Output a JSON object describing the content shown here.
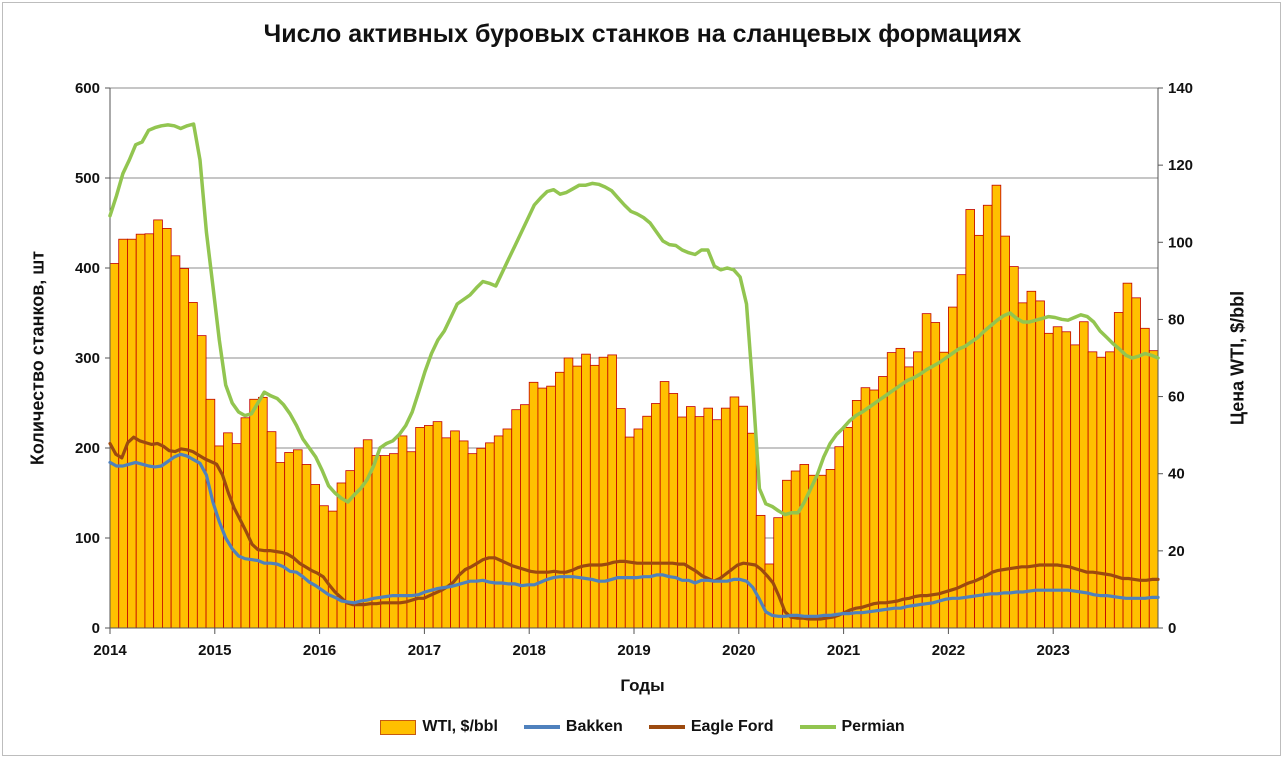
{
  "chart_data": {
    "type": "bar+line",
    "title": "Число активных буровых станков на сланцевых формациях",
    "xlabel": "Годы",
    "ylabel_left": "Количество станков, шт",
    "ylabel_right": "Цена WTI, $/bbl",
    "ylim_left": [
      0,
      600
    ],
    "ylim_right": [
      0,
      140
    ],
    "yticks_left": [
      "0",
      "100",
      "200",
      "300",
      "400",
      "500",
      "600"
    ],
    "yticks_right": [
      "0",
      "20",
      "40",
      "60",
      "80",
      "100",
      "120",
      "140"
    ],
    "xticks": [
      "2014",
      "2015",
      "2016",
      "2017",
      "2018",
      "2019",
      "2020",
      "2021",
      "2022",
      "2023"
    ],
    "x_start": "2014-01",
    "gridlines": "horizontal, left axis, every 100",
    "legend_position": "bottom",
    "series": [
      {
        "name": "WTI, $/bbl",
        "kind": "bar",
        "axis": "right",
        "color": "#ffc000",
        "edge_color": "#c00000",
        "values": [
          94.5,
          100.8,
          100.8,
          102.1,
          102.2,
          105.8,
          103.6,
          96.5,
          93.2,
          84.4,
          75.8,
          59.3,
          47.2,
          50.6,
          47.8,
          54.5,
          59.3,
          59.8,
          50.9,
          42.9,
          45.5,
          46.2,
          42.4,
          37.2,
          31.7,
          30.3,
          37.6,
          40.8,
          46.7,
          48.8,
          44.7,
          44.7,
          45.2,
          49.8,
          45.7,
          52.0,
          52.5,
          53.5,
          49.3,
          51.1,
          48.5,
          45.2,
          46.6,
          48.0,
          49.8,
          51.6,
          56.6,
          57.9,
          63.7,
          62.2,
          62.7,
          66.3,
          70.0,
          67.9,
          71.0,
          68.1,
          70.2,
          70.8,
          56.9,
          49.5,
          51.6,
          54.9,
          58.2,
          63.9,
          60.8,
          54.7,
          57.4,
          54.8,
          57.0,
          54.0,
          57.0,
          59.9,
          57.5,
          50.5,
          29.2,
          16.6,
          28.6,
          38.3,
          40.7,
          42.4,
          39.6,
          39.6,
          41.1,
          47.0,
          52.0,
          59.0,
          62.3,
          61.7,
          65.2,
          71.4,
          72.5,
          67.7,
          71.6,
          81.5,
          79.2,
          71.5,
          83.2,
          91.6,
          108.5,
          101.8,
          109.6,
          114.8,
          101.6,
          93.7,
          84.3,
          87.3,
          84.8,
          76.4,
          78.1,
          76.8,
          73.4,
          79.4,
          71.6,
          70.2,
          71.6,
          81.8,
          89.4,
          85.6,
          77.7,
          71.9
        ]
      },
      {
        "name": "Bakken",
        "kind": "line",
        "axis": "left",
        "color": "#4f81bd",
        "values": [
          184,
          180,
          180,
          182,
          184,
          182,
          180,
          179,
          180,
          185,
          190,
          193,
          191,
          187,
          183,
          170,
          140,
          118,
          100,
          88,
          80,
          77,
          76,
          75,
          72,
          72,
          71,
          68,
          63,
          62,
          57,
          51,
          47,
          42,
          37,
          34,
          30,
          29,
          28,
          30,
          31,
          33,
          34,
          35,
          36,
          36,
          36,
          36,
          37,
          40,
          42,
          44,
          45,
          46,
          48,
          50,
          52,
          52,
          53,
          51,
          50,
          50,
          49,
          49,
          47,
          48,
          48,
          51,
          54,
          56,
          57,
          57,
          57,
          56,
          55,
          54,
          52,
          52,
          54,
          56,
          56,
          56,
          56,
          57,
          57,
          59,
          59,
          57,
          56,
          53,
          53,
          50,
          53,
          53,
          52,
          52,
          52,
          54,
          54,
          52,
          45,
          32,
          18,
          14,
          13,
          13,
          14,
          14,
          13,
          13,
          13,
          14,
          14,
          15,
          16,
          16,
          17,
          17,
          18,
          19,
          20,
          21,
          22,
          22,
          24,
          25,
          26,
          27,
          28,
          30,
          32,
          33,
          33,
          34,
          35,
          36,
          37,
          38,
          38,
          39,
          39,
          40,
          40,
          41,
          42,
          42,
          42,
          42,
          42,
          42,
          41,
          40,
          39,
          37,
          36,
          36,
          35,
          34,
          33,
          33,
          33,
          33,
          34,
          34
        ]
      },
      {
        "name": "Eagle Ford",
        "kind": "line",
        "axis": "left",
        "color": "#9c4a0f",
        "values": [
          205,
          193,
          189,
          206,
          212,
          208,
          206,
          204,
          205,
          202,
          197,
          196,
          199,
          198,
          196,
          192,
          188,
          185,
          182,
          170,
          150,
          133,
          120,
          107,
          93,
          87,
          86,
          86,
          85,
          84,
          82,
          78,
          72,
          68,
          64,
          61,
          57,
          48,
          40,
          34,
          28,
          26,
          26,
          26,
          27,
          27,
          28,
          28,
          28,
          28,
          29,
          31,
          33,
          33,
          36,
          39,
          42,
          46,
          51,
          59,
          65,
          68,
          72,
          76,
          78,
          78,
          75,
          72,
          69,
          67,
          65,
          63,
          62,
          62,
          62,
          63,
          62,
          62,
          64,
          67,
          69,
          70,
          70,
          70,
          71,
          73,
          74,
          74,
          73,
          72,
          72,
          72,
          72,
          72,
          72,
          72,
          71,
          71,
          67,
          63,
          58,
          55,
          52,
          55,
          60,
          65,
          70,
          72,
          71,
          70,
          65,
          58,
          50,
          35,
          18,
          12,
          11,
          11,
          10,
          10,
          10,
          11,
          12,
          14,
          17,
          20,
          22,
          23,
          25,
          27,
          28,
          28,
          29,
          30,
          32,
          33,
          35,
          36,
          36,
          37,
          38,
          40,
          42,
          44,
          47,
          50,
          52,
          55,
          58,
          62,
          64,
          65,
          66,
          67,
          68,
          68,
          69,
          70,
          70,
          70,
          70,
          69,
          68,
          66,
          64,
          62,
          62,
          61,
          60,
          59,
          57,
          55,
          55,
          54,
          53,
          53,
          54,
          54
        ]
      },
      {
        "name": "Permian",
        "kind": "line",
        "axis": "left",
        "color": "#92c550",
        "values": [
          458,
          480,
          505,
          520,
          537,
          540,
          553,
          556,
          558,
          559,
          558,
          555,
          558,
          560,
          520,
          440,
          380,
          320,
          270,
          250,
          240,
          236,
          238,
          250,
          262,
          258,
          255,
          248,
          238,
          225,
          210,
          200,
          190,
          175,
          158,
          150,
          144,
          140,
          148,
          155,
          165,
          180,
          200,
          205,
          208,
          215,
          225,
          240,
          262,
          285,
          305,
          320,
          330,
          345,
          360,
          365,
          370,
          378,
          385,
          383,
          380,
          395,
          410,
          425,
          440,
          455,
          470,
          478,
          485,
          487,
          482,
          484,
          488,
          492,
          492,
          494,
          493,
          490,
          486,
          478,
          470,
          463,
          460,
          456,
          450,
          440,
          430,
          426,
          425,
          420,
          417,
          415,
          420,
          420,
          402,
          398,
          400,
          398,
          390,
          360,
          265,
          155,
          138,
          135,
          130,
          126,
          128,
          128,
          140,
          155,
          170,
          190,
          205,
          215,
          222,
          230,
          236,
          240,
          245,
          250,
          255,
          260,
          265,
          270,
          275,
          278,
          282,
          287,
          291,
          295,
          300,
          305,
          310,
          313,
          318,
          323,
          330,
          336,
          342,
          347,
          350,
          344,
          340,
          340,
          342,
          344,
          346,
          345,
          343,
          342,
          345,
          348,
          346,
          340,
          330,
          323,
          316,
          310,
          303,
          300,
          302,
          305,
          303,
          300
        ]
      }
    ]
  }
}
